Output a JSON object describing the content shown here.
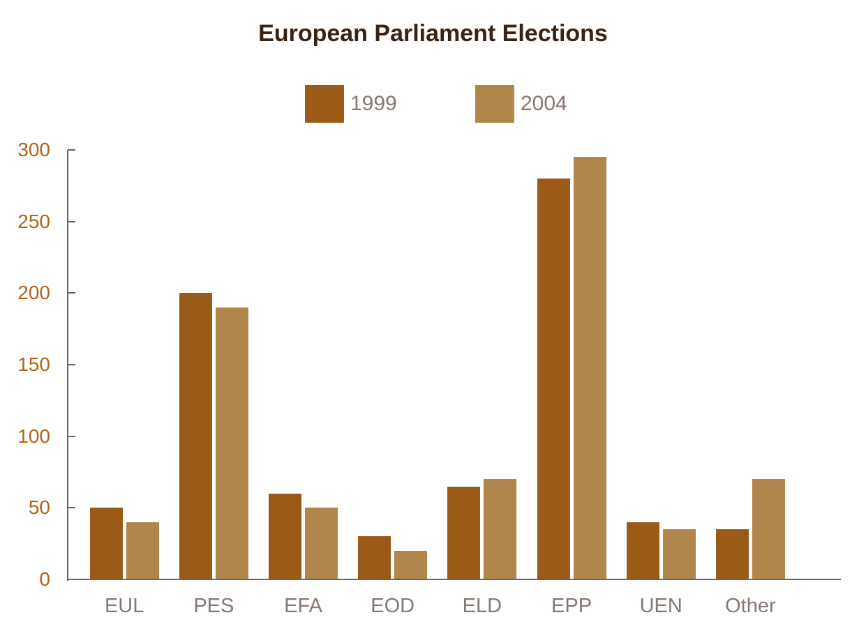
{
  "title": "European Parliament Elections",
  "legend": {
    "items": [
      {
        "label": "1999",
        "color": "#9B5A15"
      },
      {
        "label": "2004",
        "color": "#B1864B"
      }
    ]
  },
  "chart_data": {
    "type": "bar",
    "title": "European Parliament Elections",
    "categories": [
      "EUL",
      "PES",
      "EFA",
      "EOD",
      "ELD",
      "EPP",
      "UEN",
      "Other"
    ],
    "series": [
      {
        "name": "1999",
        "color": "#9B5A15",
        "values": [
          50,
          200,
          60,
          30,
          65,
          280,
          40,
          35
        ]
      },
      {
        "name": "2004",
        "color": "#B1864B",
        "values": [
          40,
          190,
          50,
          20,
          70,
          295,
          35,
          70
        ]
      }
    ],
    "xlabel": "",
    "ylabel": "",
    "ylim": [
      0,
      300
    ],
    "yticks": [
      0,
      50,
      100,
      150,
      200,
      250,
      300
    ],
    "grid": false,
    "legend_position": "top-center"
  },
  "colors": {
    "background": "#FFFFFF",
    "title_text": "#3A2313",
    "axis_line": "#656565",
    "y_tick_label": "#B06514",
    "x_tick_label": "#877772",
    "legend_label": "#877772",
    "series_1999": "#9B5A15",
    "series_2004": "#B1864B"
  }
}
